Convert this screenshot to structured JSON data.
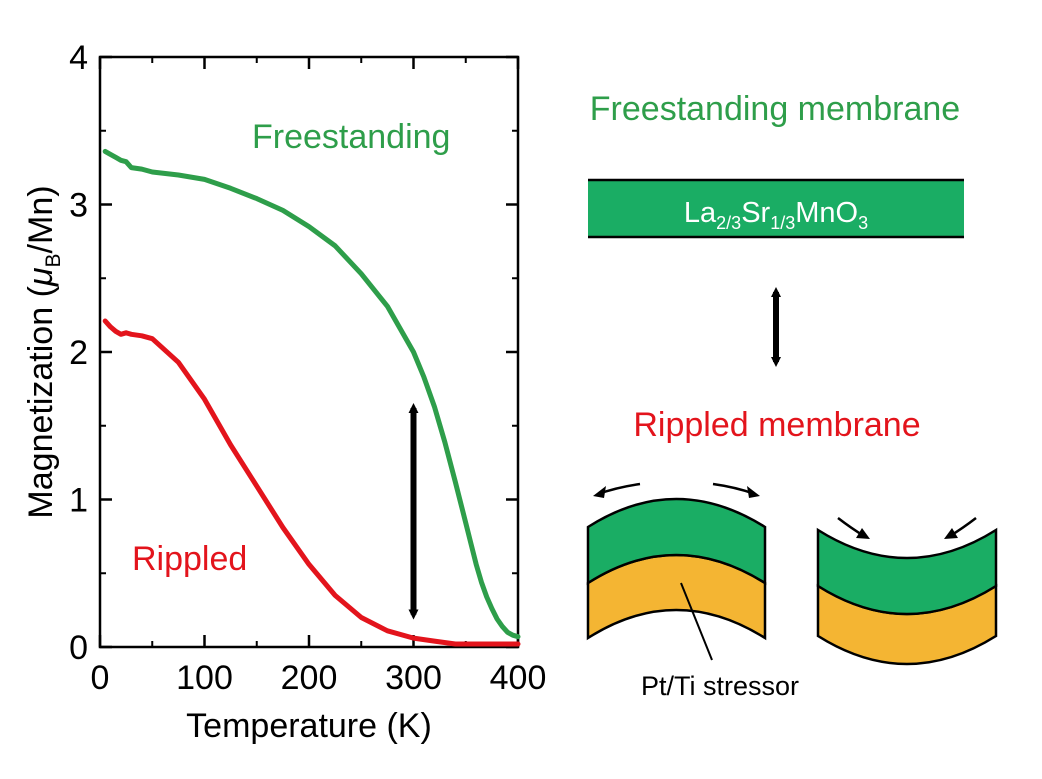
{
  "colors": {
    "freestanding": "#2e9e4a",
    "rippled": "#e3141c",
    "membrane_fill": "#1aad64",
    "stressor_fill": "#f4b533",
    "ink": "#000000"
  },
  "chart_data": {
    "type": "line",
    "xlabel": "Temperature (K)",
    "ylabel": {
      "prefix": "Magnetization (",
      "symbol": "μ",
      "subscript": "B",
      "suffix": "/Mn)"
    },
    "xlim": [
      0,
      400
    ],
    "ylim": [
      0,
      4
    ],
    "xticks": [
      0,
      100,
      200,
      300,
      400
    ],
    "yticks": [
      0,
      1,
      2,
      3,
      4
    ],
    "xtick_labels": [
      "0",
      "100",
      "200",
      "300",
      "400"
    ],
    "ytick_labels": [
      "0",
      "1",
      "2",
      "3",
      "4"
    ],
    "grid": false,
    "series": [
      {
        "name": "Freestanding",
        "color": "#2e9e4a",
        "x": [
          5,
          10,
          15,
          20,
          25,
          30,
          40,
          50,
          75,
          100,
          125,
          150,
          175,
          200,
          225,
          250,
          275,
          300,
          310,
          320,
          330,
          340,
          350,
          355,
          360,
          365,
          370,
          375,
          380,
          385,
          390,
          395,
          400
        ],
        "y": [
          3.36,
          3.34,
          3.32,
          3.3,
          3.29,
          3.25,
          3.24,
          3.22,
          3.2,
          3.17,
          3.11,
          3.04,
          2.96,
          2.85,
          2.72,
          2.53,
          2.31,
          2.0,
          1.83,
          1.63,
          1.39,
          1.12,
          0.84,
          0.7,
          0.56,
          0.44,
          0.34,
          0.26,
          0.19,
          0.14,
          0.1,
          0.08,
          0.07
        ]
      },
      {
        "name": "Rippled",
        "color": "#e3141c",
        "x": [
          5,
          10,
          15,
          20,
          25,
          30,
          40,
          50,
          75,
          100,
          125,
          150,
          175,
          200,
          225,
          250,
          275,
          300,
          320,
          340,
          360,
          380,
          400
        ],
        "y": [
          2.21,
          2.17,
          2.14,
          2.12,
          2.13,
          2.12,
          2.11,
          2.09,
          1.93,
          1.68,
          1.37,
          1.09,
          0.81,
          0.56,
          0.35,
          0.2,
          0.11,
          0.06,
          0.04,
          0.02,
          0.02,
          0.02,
          0.02
        ]
      }
    ],
    "annotations": [
      {
        "text": "Freestanding",
        "color": "#2e9e4a"
      },
      {
        "text": "Rippled",
        "color": "#e3141c"
      },
      {
        "type": "double-arrow",
        "x": 300,
        "y_from": 0.22,
        "y_to": 1.62
      }
    ]
  },
  "schematic": {
    "title_freestanding": "Freestanding membrane",
    "title_rippled": "Rippled membrane",
    "formula": {
      "el1": "La",
      "sub1": "2/3",
      "el2": "Sr",
      "sub2": "1/3",
      "el3": "MnO",
      "sub3": "3"
    },
    "stressor_label": "Pt/Ti stressor"
  }
}
